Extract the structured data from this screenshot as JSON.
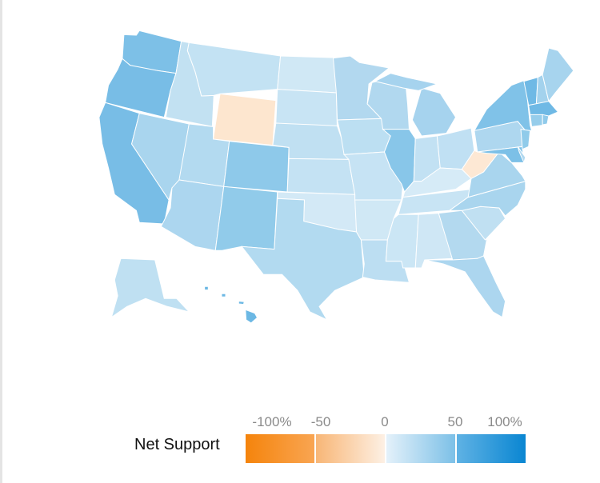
{
  "legend": {
    "title": "Net Support",
    "ticks": [
      "-100%",
      "-50",
      "0",
      "50",
      "100%"
    ],
    "colors": {
      "negative": "#f5840c",
      "neutral": "#fdf0e4",
      "neutral_pos": "#e4f1fa",
      "positive": "#0a86d2"
    }
  },
  "states": [
    {
      "code": "WA",
      "color": "#7dc0e7"
    },
    {
      "code": "OR",
      "color": "#78bde6"
    },
    {
      "code": "CA",
      "color": "#78bde6"
    },
    {
      "code": "NV",
      "color": "#a9d5ee"
    },
    {
      "code": "ID",
      "color": "#c2e1f2"
    },
    {
      "code": "MT",
      "color": "#c3e2f3"
    },
    {
      "code": "WY",
      "color": "#fde6cf"
    },
    {
      "code": "UT",
      "color": "#b3daf0"
    },
    {
      "code": "CO",
      "color": "#8ec9ea"
    },
    {
      "code": "AZ",
      "color": "#acd6ef"
    },
    {
      "code": "NM",
      "color": "#91cbea"
    },
    {
      "code": "ND",
      "color": "#d0e8f5"
    },
    {
      "code": "SD",
      "color": "#c8e4f4"
    },
    {
      "code": "NE",
      "color": "#c0e0f2"
    },
    {
      "code": "KS",
      "color": "#c4e2f3"
    },
    {
      "code": "OK",
      "color": "#d3e9f6"
    },
    {
      "code": "TX",
      "color": "#b2daf0"
    },
    {
      "code": "MN",
      "color": "#b2d8ef"
    },
    {
      "code": "IA",
      "color": "#bcdff2"
    },
    {
      "code": "MO",
      "color": "#c6e3f4"
    },
    {
      "code": "AR",
      "color": "#d0e8f5"
    },
    {
      "code": "LA",
      "color": "#bcdef2"
    },
    {
      "code": "WI",
      "color": "#b1d8ef"
    },
    {
      "code": "IL",
      "color": "#88c6e9"
    },
    {
      "code": "MI",
      "color": "#a6d3ee"
    },
    {
      "code": "IN",
      "color": "#c2e1f3"
    },
    {
      "code": "OH",
      "color": "#c0e0f3"
    },
    {
      "code": "KY",
      "color": "#d6ebf7"
    },
    {
      "code": "TN",
      "color": "#c8e4f4"
    },
    {
      "code": "MS",
      "color": "#cbe6f5"
    },
    {
      "code": "AL",
      "color": "#cfe7f5"
    },
    {
      "code": "GA",
      "color": "#b3d9ef"
    },
    {
      "code": "FL",
      "color": "#acd6ef"
    },
    {
      "code": "SC",
      "color": "#c0e0f2"
    },
    {
      "code": "NC",
      "color": "#a9d5ee"
    },
    {
      "code": "VA",
      "color": "#a9d5ee"
    },
    {
      "code": "WV",
      "color": "#fde8d4"
    },
    {
      "code": "PA",
      "color": "#aed7ef"
    },
    {
      "code": "NY",
      "color": "#80c2e8"
    },
    {
      "code": "MD",
      "color": "#7cc0e7"
    },
    {
      "code": "DE",
      "color": "#b0d8ef"
    },
    {
      "code": "NJ",
      "color": "#90cbea"
    },
    {
      "code": "VT",
      "color": "#6fb9e5"
    },
    {
      "code": "NH",
      "color": "#a3d2ed"
    },
    {
      "code": "ME",
      "color": "#a7d4ee"
    },
    {
      "code": "MA",
      "color": "#6fb9e5"
    },
    {
      "code": "CT",
      "color": "#96cdeb"
    },
    {
      "code": "RI",
      "color": "#90caea"
    },
    {
      "code": "AK",
      "color": "#bfe0f2"
    },
    {
      "code": "HI",
      "color": "#6cb8e4"
    }
  ]
}
